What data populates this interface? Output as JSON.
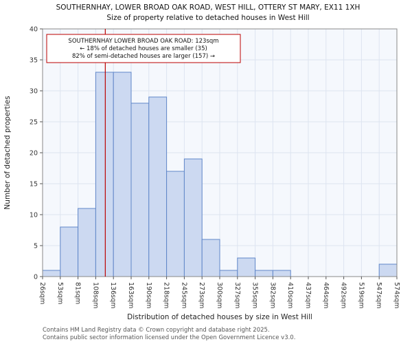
{
  "chart_data": {
    "type": "bar",
    "title": "SOUTHERNHAY, LOWER BROAD OAK ROAD, WEST HILL, OTTERY ST MARY, EX11 1XH",
    "subtitle": "Size of property relative to detached houses in West Hill",
    "xlabel": "Distribution of detached houses by size in West Hill",
    "ylabel": "Number of detached properties",
    "ylim": [
      0,
      40
    ],
    "yticks": [
      0,
      5,
      10,
      15,
      20,
      25,
      30,
      35,
      40
    ],
    "x_range_sqm": [
      26,
      574
    ],
    "bin_labels": [
      "26sqm",
      "53sqm",
      "81sqm",
      "108sqm",
      "136sqm",
      "163sqm",
      "190sqm",
      "218sqm",
      "245sqm",
      "273sqm",
      "300sqm",
      "327sqm",
      "355sqm",
      "382sqm",
      "410sqm",
      "437sqm",
      "464sqm",
      "492sqm",
      "519sqm",
      "547sqm",
      "574sqm"
    ],
    "values": [
      1,
      8,
      11,
      33,
      33,
      28,
      29,
      17,
      19,
      6,
      1,
      3,
      1,
      1,
      0,
      0,
      0,
      0,
      0,
      2
    ],
    "marker": {
      "value_sqm": 123
    },
    "annotation": {
      "line1": "SOUTHERNHAY LOWER BROAD OAK ROAD: 123sqm",
      "line2": "← 18% of detached houses are smaller (35)",
      "line3": "82% of semi-detached houses are larger (157) →"
    },
    "grid_on": true,
    "legend": "none",
    "colors": {
      "bar_fill": "#ccd9f1",
      "bar_stroke": "#5f86c9",
      "marker_line": "#bb0000",
      "grid": "#dde4f0",
      "plot_bg": "#f5f8fd",
      "spine": "#888888"
    }
  },
  "footer": {
    "line1": "Contains HM Land Registry data © Crown copyright and database right 2025.",
    "line2": "Contains public sector information licensed under the Open Government Licence v3.0."
  }
}
